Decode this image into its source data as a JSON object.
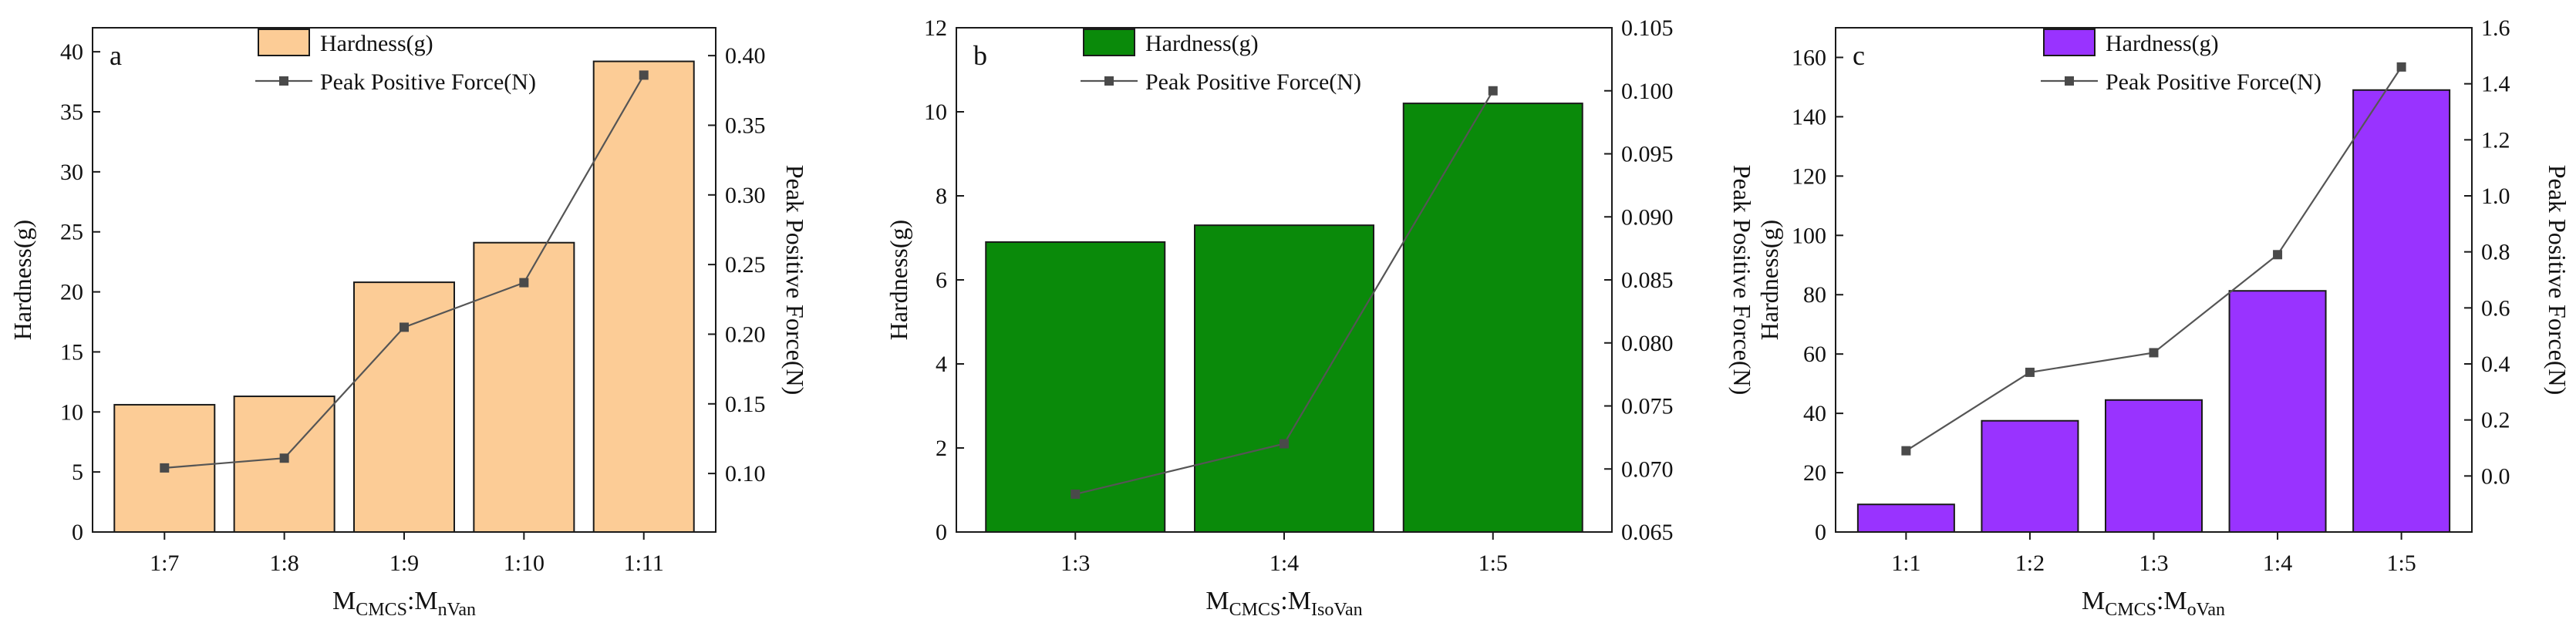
{
  "panels": [
    {
      "letter": "a",
      "xlabel": {
        "main": "M",
        "sub1": "CMCS",
        "colon": ":M",
        "sub2": "nVan"
      },
      "legend": {
        "bar": "Hardness(g)",
        "line": "Peak Positive Force(N)"
      },
      "colors": {
        "bar_fill": "#fccc96",
        "bar_stroke": "#1a1a1a",
        "line": "#555555"
      },
      "chart_data": {
        "type": "bar+line",
        "categories": [
          "1:7",
          "1:8",
          "1:9",
          "1:10",
          "1:11"
        ],
        "series": [
          {
            "name": "Hardness(g)",
            "axis": "left",
            "values": [
              10.6,
              11.3,
              20.8,
              24.1,
              39.2
            ]
          },
          {
            "name": "Peak Positive Force(N)",
            "axis": "right",
            "values": [
              0.104,
              0.111,
              0.205,
              0.237,
              0.386
            ]
          }
        ],
        "ylabel": "Hardness(g)",
        "ylabel_right": "Peak Positive Force(N)",
        "ylim": [
          0,
          42
        ],
        "ylim_right": [
          0.058,
          0.42
        ],
        "yticks": [
          "0",
          "5",
          "10",
          "15",
          "20",
          "25",
          "30",
          "35",
          "40"
        ],
        "yticks_right": [
          "0.10",
          "0.15",
          "0.20",
          "0.25",
          "0.30",
          "0.35",
          "0.40"
        ],
        "legend_position": "top-center",
        "grid": false
      }
    },
    {
      "letter": "b",
      "xlabel": {
        "main": "M",
        "sub1": "CMCS",
        "colon": ":M",
        "sub2": "IsoVan"
      },
      "legend": {
        "bar": "Hardness(g)",
        "line": "Peak Positive Force(N)"
      },
      "colors": {
        "bar_fill": "#0a8a0a",
        "bar_stroke": "#1a1a1a",
        "line": "#555555"
      },
      "chart_data": {
        "type": "bar+line",
        "categories": [
          "1:3",
          "1:4",
          "1:5"
        ],
        "series": [
          {
            "name": "Hardness(g)",
            "axis": "left",
            "values": [
              6.9,
              7.3,
              10.2
            ]
          },
          {
            "name": "Peak Positive Force(N)",
            "axis": "right",
            "values": [
              0.068,
              0.072,
              0.1
            ]
          }
        ],
        "ylabel": "Hardness(g)",
        "ylabel_right": "Peak Positive Force(N)",
        "ylim": [
          0,
          12
        ],
        "ylim_right": [
          0.065,
          0.105
        ],
        "yticks": [
          "0",
          "2",
          "4",
          "6",
          "8",
          "10",
          "12"
        ],
        "yticks_right": [
          "0.065",
          "0.070",
          "0.075",
          "0.080",
          "0.085",
          "0.090",
          "0.095",
          "0.100",
          "0.105"
        ],
        "legend_position": "top-center",
        "grid": false
      }
    },
    {
      "letter": "c",
      "xlabel": {
        "main": "M",
        "sub1": "CMCS",
        "colon": ":M",
        "sub2": "oVan"
      },
      "legend": {
        "bar": "Hardness(g)",
        "line": "Peak Positive Force(N)"
      },
      "colors": {
        "bar_fill": "#9933ff",
        "bar_stroke": "#1a1a1a",
        "line": "#555555"
      },
      "chart_data": {
        "type": "bar+line",
        "categories": [
          "1:1",
          "1:2",
          "1:3",
          "1:4",
          "1:5"
        ],
        "series": [
          {
            "name": "Hardness(g)",
            "axis": "left",
            "values": [
              9.3,
              37.5,
              44.5,
              81.3,
              149
            ]
          },
          {
            "name": "Peak Positive Force(N)",
            "axis": "right",
            "values": [
              0.09,
              0.37,
              0.44,
              0.79,
              1.46
            ]
          }
        ],
        "ylabel": "Hardness(g)",
        "ylabel_right": "Peak Positive Force(N)",
        "ylim": [
          0,
          170
        ],
        "ylim_right": [
          -0.2,
          1.6
        ],
        "yticks": [
          "0",
          "20",
          "40",
          "60",
          "80",
          "100",
          "120",
          "140",
          "160"
        ],
        "yticks_right": [
          "0.0",
          "0.2",
          "0.4",
          "0.6",
          "0.8",
          "1.0",
          "1.2",
          "1.4",
          "1.6"
        ],
        "legend_position": "top-center",
        "grid": false
      }
    }
  ]
}
